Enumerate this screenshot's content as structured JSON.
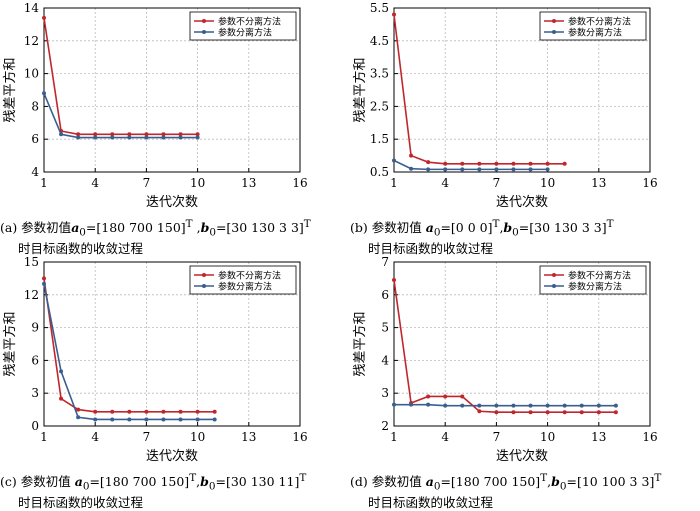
{
  "ylabel": "残差平方和",
  "xlabel": "迭代次数",
  "colors": {
    "separate_off": "#c0272d",
    "separate_on": "#3a5f8f"
  },
  "chart_data": [
    {
      "type": "line",
      "xlabel": "迭代次数",
      "ylabel": "残差平方和",
      "xlim": [
        1,
        16
      ],
      "ylim": [
        4,
        14
      ],
      "xticks": [
        "1",
        "4",
        "7",
        "10",
        "13",
        "16"
      ],
      "yticks": [
        "4",
        "6",
        "8",
        "10",
        "12",
        "14"
      ],
      "grid": true,
      "legend_position": "top-right",
      "series": [
        {
          "name": "参数不分离方法",
          "color": "#c0272d",
          "x": [
            1,
            2,
            3,
            4,
            5,
            6,
            7,
            8,
            9,
            10
          ],
          "values": [
            13.4,
            6.5,
            6.3,
            6.3,
            6.3,
            6.3,
            6.3,
            6.3,
            6.3,
            6.3
          ]
        },
        {
          "name": "参数分离方法",
          "color": "#3a5f8f",
          "x": [
            1,
            2,
            3,
            4,
            5,
            6,
            7,
            8,
            9,
            10
          ],
          "values": [
            8.8,
            6.3,
            6.1,
            6.1,
            6.1,
            6.1,
            6.1,
            6.1,
            6.1,
            6.1
          ]
        }
      ],
      "caption": {
        "prefix": "(a) 参数初值",
        "a_sym": "a",
        "a_val": "=[180 700 150]",
        "sep": " ,",
        "b_sym": "b",
        "b_val": "=[30 130 3 3]",
        "sup": "T",
        "sub": "0",
        "line2": "时目标函数的收敛过程"
      }
    },
    {
      "type": "line",
      "xlabel": "迭代次数",
      "ylabel": "残差平方和",
      "xlim": [
        1,
        16
      ],
      "ylim": [
        0.5,
        5.5
      ],
      "xticks": [
        "1",
        "4",
        "7",
        "10",
        "13",
        "16"
      ],
      "yticks": [
        "0.5",
        "1.5",
        "2.5",
        "3.5",
        "4.5",
        "5.5"
      ],
      "grid": true,
      "legend_position": "top-right",
      "series": [
        {
          "name": "参数不分离方法",
          "color": "#c0272d",
          "x": [
            1,
            2,
            3,
            4,
            5,
            6,
            7,
            8,
            9,
            10,
            11
          ],
          "values": [
            5.3,
            1.0,
            0.8,
            0.75,
            0.75,
            0.75,
            0.75,
            0.75,
            0.75,
            0.75,
            0.75
          ]
        },
        {
          "name": "参数分离方法",
          "color": "#3a5f8f",
          "x": [
            1,
            2,
            3,
            4,
            5,
            6,
            7,
            8,
            9,
            10
          ],
          "values": [
            0.85,
            0.6,
            0.58,
            0.58,
            0.58,
            0.58,
            0.58,
            0.58,
            0.58,
            0.58
          ]
        }
      ],
      "caption": {
        "prefix": "(b) 参数初值 ",
        "a_sym": "a",
        "a_val": "=[0 0 0]",
        "sep": ",",
        "b_sym": "b",
        "b_val": "=[30 130 3 3]",
        "sup": "T",
        "sub": "0",
        "line2": "时目标函数的收敛过程"
      }
    },
    {
      "type": "line",
      "xlabel": "迭代次数",
      "ylabel": "残差平方和",
      "xlim": [
        1,
        16
      ],
      "ylim": [
        0,
        15
      ],
      "xticks": [
        "1",
        "4",
        "7",
        "10",
        "13",
        "16"
      ],
      "yticks": [
        "0",
        "3",
        "6",
        "9",
        "12",
        "15"
      ],
      "grid": true,
      "legend_position": "top-right",
      "series": [
        {
          "name": "参数不分离方法",
          "color": "#c0272d",
          "x": [
            1,
            2,
            3,
            4,
            5,
            6,
            7,
            8,
            9,
            10,
            11
          ],
          "values": [
            13.5,
            2.5,
            1.5,
            1.3,
            1.3,
            1.3,
            1.3,
            1.3,
            1.3,
            1.3,
            1.3
          ]
        },
        {
          "name": "参数分离方法",
          "color": "#3a5f8f",
          "x": [
            1,
            2,
            3,
            4,
            5,
            6,
            7,
            8,
            9,
            10,
            11
          ],
          "values": [
            13.0,
            5.0,
            0.8,
            0.6,
            0.6,
            0.6,
            0.6,
            0.6,
            0.6,
            0.6,
            0.6
          ]
        }
      ],
      "caption": {
        "prefix": "(c) 参数初值 ",
        "a_sym": "a",
        "a_val": "=[180 700 150]",
        "sep": ",",
        "b_sym": "b",
        "b_val": "=[30 130 11]",
        "sup": "T",
        "sub": "0",
        "line2": "时目标函数的收敛过程"
      }
    },
    {
      "type": "line",
      "xlabel": "迭代次数",
      "ylabel": "残差平方和",
      "xlim": [
        1,
        16
      ],
      "ylim": [
        2,
        7
      ],
      "xticks": [
        "1",
        "4",
        "7",
        "10",
        "13",
        "16"
      ],
      "yticks": [
        "2",
        "3",
        "4",
        "5",
        "6",
        "7"
      ],
      "grid": true,
      "legend_position": "top-right",
      "series": [
        {
          "name": "参数不分离方法",
          "color": "#c0272d",
          "x": [
            1,
            2,
            3,
            4,
            5,
            6,
            7,
            8,
            9,
            10,
            11,
            12,
            13,
            14
          ],
          "values": [
            6.45,
            2.7,
            2.9,
            2.9,
            2.9,
            2.45,
            2.42,
            2.42,
            2.42,
            2.42,
            2.42,
            2.42,
            2.42,
            2.42
          ]
        },
        {
          "name": "参数分离方法",
          "color": "#3a5f8f",
          "x": [
            1,
            2,
            3,
            4,
            5,
            6,
            7,
            8,
            9,
            10,
            11,
            12,
            13,
            14
          ],
          "values": [
            2.65,
            2.65,
            2.65,
            2.62,
            2.62,
            2.62,
            2.62,
            2.62,
            2.62,
            2.62,
            2.62,
            2.62,
            2.62,
            2.62
          ]
        }
      ],
      "caption": {
        "prefix": "(d) 参数初值 ",
        "a_sym": "a",
        "a_val": "=[180 700 150]",
        "sep": ",",
        "b_sym": "b",
        "b_val": "=[10 100 3 3]",
        "sup": "T",
        "sub": "0",
        "line2": "时目标函数的收敛过程"
      }
    }
  ]
}
